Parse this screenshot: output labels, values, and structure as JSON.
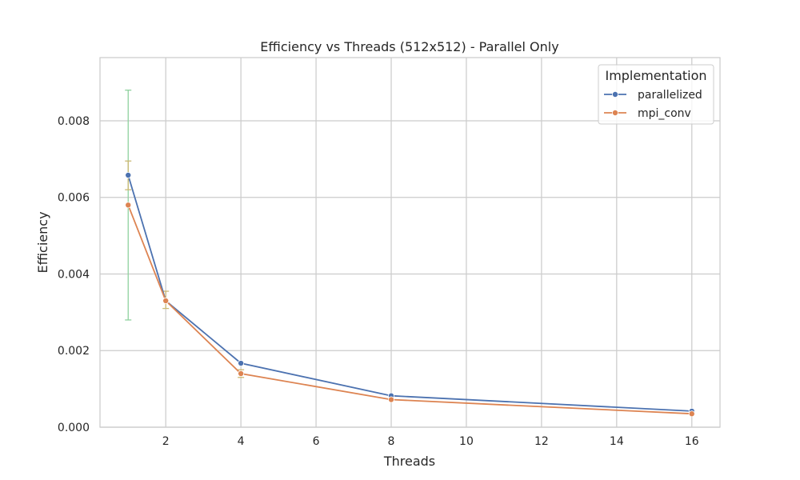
{
  "chart_data": {
    "type": "line",
    "title": "Efficiency vs Threads (512x512) - Parallel Only",
    "xlabel": "Threads",
    "ylabel": "Efficiency",
    "xlim": [
      0.25,
      16.75
    ],
    "ylim": [
      0,
      0.00965
    ],
    "xticks": [
      2,
      4,
      6,
      8,
      10,
      12,
      14,
      16
    ],
    "yticks": [
      0.0,
      0.002,
      0.004,
      0.006,
      0.008
    ],
    "ytick_labels": [
      "0.000",
      "0.002",
      "0.004",
      "0.006",
      "0.008"
    ],
    "grid": true,
    "legend": {
      "title": "Implementation",
      "placement": "top-right"
    },
    "x": [
      1,
      2,
      4,
      8,
      16
    ],
    "series": [
      {
        "name": "parallelized",
        "color": "#4c72b0",
        "values": [
          0.00658,
          0.0033,
          0.00167,
          0.00082,
          0.00042
        ],
        "error_bars": [
          [
            0.0028,
            0.0088
          ],
          null,
          null,
          null,
          null
        ],
        "error_color": "#8fd19e"
      },
      {
        "name": "mpi_conv",
        "color": "#dd8452",
        "values": [
          0.0058,
          0.0033,
          0.0014,
          0.00072,
          0.00035
        ],
        "error_bars": [
          [
            0.0062,
            0.00695
          ],
          [
            0.0031,
            0.00355
          ],
          [
            0.0013,
            0.0015
          ],
          null,
          null
        ],
        "error_color": "#ccb974"
      }
    ]
  }
}
